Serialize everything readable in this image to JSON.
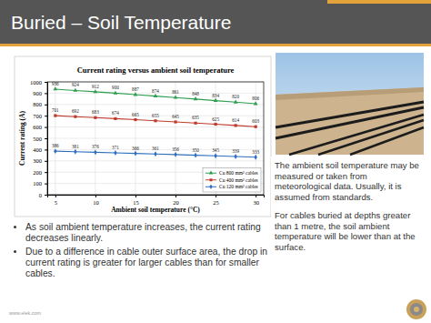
{
  "slide": {
    "title": "Buried – Soil Temperature",
    "bullets": [
      "As soil ambient temperature increases, the current rating decreases linearly.",
      "Due to a difference in cable outer surface area, the drop in current rating is greater for larger cables than for smaller cables."
    ],
    "note": [
      "The ambient soil temperature may be measured or taken from meteorological data. Usually, it is assumed from standards.",
      "For cables buried at depths greater than 1 metre, the soil ambient temperature will be lower than at the surface."
    ],
    "footer": "www.elek.com"
  },
  "chart_data": {
    "type": "line",
    "title": "Current rating versus ambient soil temperature",
    "x_label": "Ambient soil temperature (°C)",
    "y_label": "Current rating (A)",
    "x": [
      5,
      7.5,
      10,
      12.5,
      15,
      17.5,
      20,
      22.5,
      25,
      27.5,
      30
    ],
    "xlim": [
      4,
      31
    ],
    "xticks": [
      5,
      10,
      15,
      20,
      25,
      30
    ],
    "ylim": [
      0,
      1000
    ],
    "yticks": [
      0,
      100,
      200,
      300,
      400,
      500,
      600,
      700,
      800,
      900,
      1000
    ],
    "grid": true,
    "legend": "lower right",
    "data_labels": true,
    "series": [
      {
        "name": "Cu 800 mm² cables",
        "color": "#2e9e4f",
        "marker": "triangle",
        "values": [
          936,
          924,
          912,
          900,
          887,
          874,
          861,
          848,
          834,
          820,
          806
        ]
      },
      {
        "name": "Cu 400 mm² cables",
        "color": "#c0392b",
        "marker": "square",
        "values": [
          701,
          692,
          683,
          674,
          665,
          655,
          645,
          635,
          625,
          614,
          603
        ]
      },
      {
        "name": "Cu 120 mm² cables",
        "color": "#2e6fc0",
        "marker": "diamond",
        "values": [
          386,
          381,
          376,
          371,
          366,
          361,
          356,
          350,
          345,
          339,
          333
        ]
      }
    ]
  }
}
